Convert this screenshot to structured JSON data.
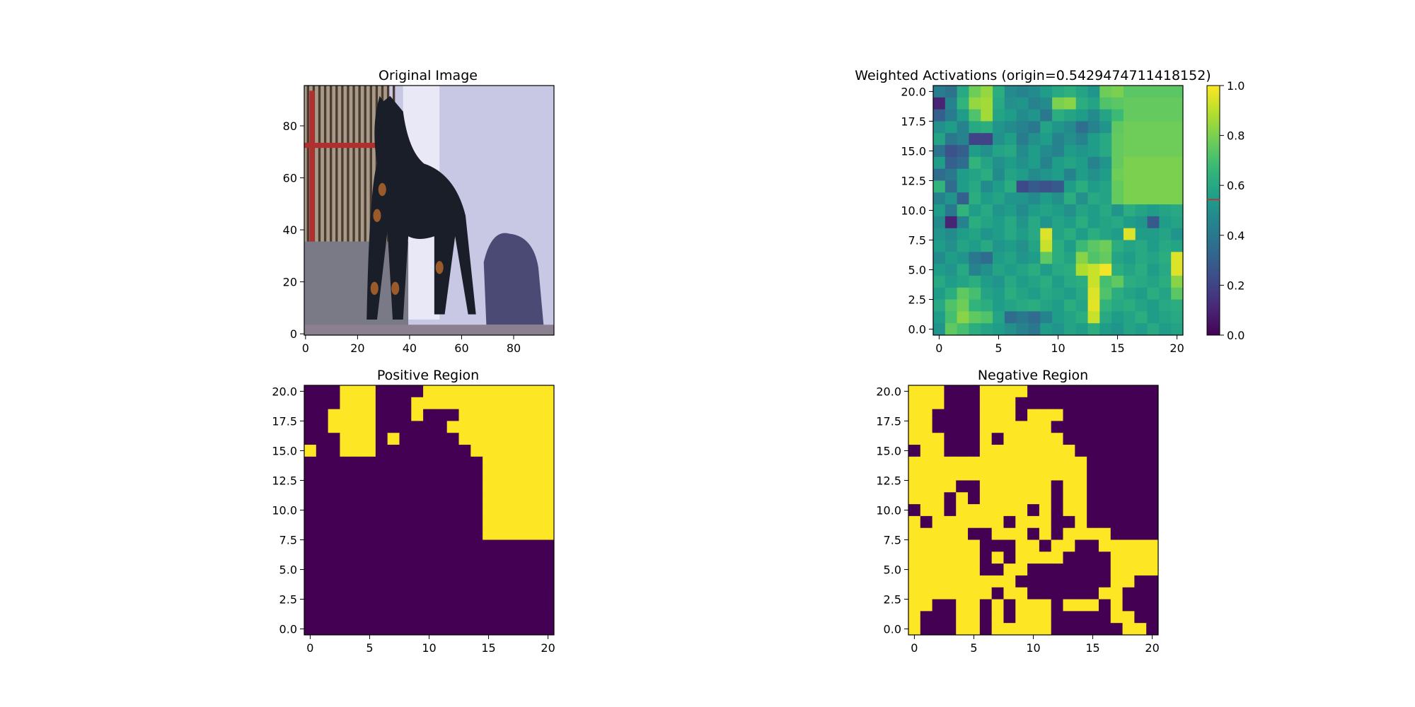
{
  "figure": {
    "background": "#ffffff",
    "panels": [
      {
        "key": "original",
        "title": "Original Image"
      },
      {
        "key": "weighted",
        "title": "Weighted Activations (origin=0.5429474711418152)"
      },
      {
        "key": "positive",
        "title": "Positive Region"
      },
      {
        "key": "negative",
        "title": "Negative Region"
      }
    ]
  },
  "chart_data": [
    {
      "type": "heatmap",
      "title": "Original Image",
      "content": "photograph of a dog",
      "xlim": [
        -0.5,
        95.5
      ],
      "ylim": [
        95.5,
        -0.5
      ],
      "xticks": [
        0,
        20,
        40,
        60,
        80
      ],
      "yticks": [
        0,
        20,
        40,
        60,
        80
      ],
      "palette": {
        "background": "#c8c8e4",
        "fence": "#a89a88",
        "fence_dark": "#4a3a30",
        "red_rail": "#b03030",
        "ground": "#7a7a86",
        "dog": "#1a1e28",
        "tan": "#9a5a2a",
        "shadow": "#4a4a74",
        "highlight": "#e8e8f6"
      }
    },
    {
      "type": "heatmap",
      "title": "Weighted Activations (origin=0.5429474711418152)",
      "rows": 21,
      "cols": 21,
      "xlim": [
        -0.5,
        20.5
      ],
      "ylim": [
        20.5,
        -0.5
      ],
      "xticks": [
        0,
        5,
        10,
        15,
        20
      ],
      "yticks": [
        0.0,
        2.5,
        5.0,
        7.5,
        10.0,
        12.5,
        15.0,
        17.5,
        20.0
      ],
      "colormap": "viridis",
      "colorbar": {
        "range": [
          0.0,
          1.0
        ],
        "ticks": [
          0.0,
          0.2,
          0.4,
          0.6,
          0.8,
          1.0
        ],
        "marker": 0.5429474711418152,
        "marker_color": "#d62728"
      },
      "values": [
        [
          0.42,
          0.38,
          0.6,
          0.78,
          0.84,
          0.62,
          0.48,
          0.45,
          0.48,
          0.55,
          0.6,
          0.63,
          0.58,
          0.52,
          0.78,
          0.8,
          0.74,
          0.74,
          0.74,
          0.74,
          0.74
        ],
        [
          0.1,
          0.45,
          0.65,
          0.84,
          0.86,
          0.6,
          0.5,
          0.52,
          0.45,
          0.48,
          0.8,
          0.82,
          0.62,
          0.58,
          0.72,
          0.74,
          0.76,
          0.76,
          0.76,
          0.76,
          0.76
        ],
        [
          0.3,
          0.42,
          0.55,
          0.72,
          0.86,
          0.58,
          0.55,
          0.48,
          0.52,
          0.4,
          0.62,
          0.58,
          0.55,
          0.48,
          0.58,
          0.68,
          0.76,
          0.76,
          0.76,
          0.76,
          0.76
        ],
        [
          0.5,
          0.55,
          0.45,
          0.6,
          0.62,
          0.52,
          0.48,
          0.45,
          0.4,
          0.58,
          0.52,
          0.48,
          0.36,
          0.45,
          0.52,
          0.75,
          0.78,
          0.78,
          0.78,
          0.78,
          0.78
        ],
        [
          0.58,
          0.4,
          0.45,
          0.2,
          0.2,
          0.5,
          0.56,
          0.42,
          0.5,
          0.55,
          0.45,
          0.5,
          0.45,
          0.55,
          0.6,
          0.76,
          0.78,
          0.78,
          0.78,
          0.78,
          0.78
        ],
        [
          0.38,
          0.25,
          0.3,
          0.55,
          0.5,
          0.58,
          0.6,
          0.48,
          0.55,
          0.48,
          0.45,
          0.55,
          0.52,
          0.55,
          0.6,
          0.76,
          0.78,
          0.78,
          0.78,
          0.78,
          0.78
        ],
        [
          0.55,
          0.3,
          0.35,
          0.65,
          0.58,
          0.5,
          0.55,
          0.5,
          0.55,
          0.45,
          0.55,
          0.58,
          0.55,
          0.45,
          0.52,
          0.76,
          0.8,
          0.8,
          0.8,
          0.8,
          0.8
        ],
        [
          0.35,
          0.4,
          0.55,
          0.58,
          0.62,
          0.48,
          0.58,
          0.55,
          0.48,
          0.52,
          0.55,
          0.45,
          0.55,
          0.5,
          0.55,
          0.78,
          0.8,
          0.8,
          0.8,
          0.8,
          0.8
        ],
        [
          0.65,
          0.35,
          0.55,
          0.6,
          0.48,
          0.55,
          0.62,
          0.22,
          0.28,
          0.25,
          0.28,
          0.55,
          0.62,
          0.55,
          0.58,
          0.76,
          0.8,
          0.8,
          0.8,
          0.8,
          0.8
        ],
        [
          0.45,
          0.52,
          0.3,
          0.62,
          0.55,
          0.58,
          0.52,
          0.52,
          0.48,
          0.55,
          0.5,
          0.62,
          0.5,
          0.6,
          0.58,
          0.76,
          0.8,
          0.8,
          0.8,
          0.8,
          0.8
        ],
        [
          0.55,
          0.4,
          0.65,
          0.55,
          0.6,
          0.52,
          0.55,
          0.48,
          0.55,
          0.58,
          0.55,
          0.5,
          0.58,
          0.55,
          0.6,
          0.52,
          0.62,
          0.58,
          0.55,
          0.58,
          0.6
        ],
        [
          0.48,
          0.1,
          0.45,
          0.62,
          0.58,
          0.55,
          0.6,
          0.52,
          0.6,
          0.52,
          0.58,
          0.55,
          0.62,
          0.55,
          0.58,
          0.6,
          0.55,
          0.52,
          0.28,
          0.55,
          0.58
        ],
        [
          0.52,
          0.48,
          0.55,
          0.58,
          0.52,
          0.55,
          0.6,
          0.55,
          0.6,
          0.95,
          0.58,
          0.62,
          0.55,
          0.62,
          0.58,
          0.55,
          0.95,
          0.55,
          0.55,
          0.58,
          0.52
        ],
        [
          0.55,
          0.5,
          0.58,
          0.55,
          0.6,
          0.52,
          0.55,
          0.5,
          0.58,
          0.92,
          0.62,
          0.55,
          0.68,
          0.74,
          0.78,
          0.62,
          0.58,
          0.6,
          0.55,
          0.6,
          0.58
        ],
        [
          0.48,
          0.55,
          0.52,
          0.4,
          0.35,
          0.55,
          0.58,
          0.52,
          0.55,
          0.75,
          0.62,
          0.58,
          0.82,
          0.72,
          0.76,
          0.58,
          0.55,
          0.6,
          0.58,
          0.62,
          0.95
        ],
        [
          0.55,
          0.52,
          0.6,
          0.45,
          0.5,
          0.58,
          0.55,
          0.58,
          0.62,
          0.55,
          0.6,
          0.62,
          0.88,
          0.92,
          0.98,
          0.62,
          0.58,
          0.62,
          0.55,
          0.6,
          0.95
        ],
        [
          0.6,
          0.55,
          0.58,
          0.62,
          0.55,
          0.52,
          0.6,
          0.55,
          0.58,
          0.62,
          0.55,
          0.6,
          0.62,
          0.92,
          0.7,
          0.75,
          0.62,
          0.6,
          0.58,
          0.62,
          0.82
        ],
        [
          0.55,
          0.62,
          0.75,
          0.7,
          0.58,
          0.55,
          0.62,
          0.58,
          0.55,
          0.6,
          0.58,
          0.55,
          0.6,
          0.95,
          0.72,
          0.62,
          0.58,
          0.55,
          0.62,
          0.58,
          0.74
        ],
        [
          0.6,
          0.72,
          0.78,
          0.65,
          0.62,
          0.55,
          0.58,
          0.6,
          0.62,
          0.58,
          0.55,
          0.62,
          0.58,
          0.96,
          0.65,
          0.6,
          0.62,
          0.58,
          0.55,
          0.6,
          0.62
        ],
        [
          0.55,
          0.7,
          0.82,
          0.75,
          0.72,
          0.58,
          0.35,
          0.4,
          0.35,
          0.45,
          0.55,
          0.58,
          0.62,
          0.92,
          0.6,
          0.55,
          0.58,
          0.62,
          0.55,
          0.58,
          0.6
        ],
        [
          0.52,
          0.75,
          0.7,
          0.62,
          0.58,
          0.55,
          0.5,
          0.45,
          0.4,
          0.55,
          0.52,
          0.58,
          0.55,
          0.62,
          0.55,
          0.52,
          0.58,
          0.55,
          0.6,
          0.55,
          0.58
        ]
      ]
    },
    {
      "type": "heatmap",
      "title": "Positive Region",
      "rows": 21,
      "cols": 21,
      "xlim": [
        -0.5,
        20.5
      ],
      "ylim": [
        20.5,
        -0.5
      ],
      "xticks": [
        0,
        5,
        10,
        15,
        20
      ],
      "yticks": [
        0.0,
        2.5,
        5.0,
        7.5,
        10.0,
        12.5,
        15.0,
        17.5,
        20.0
      ],
      "colors": {
        "0": "#440154",
        "1": "#fde725"
      },
      "values": [
        "000111000011111111111",
        "000111000111111111111",
        "001111000100011111111",
        "001111000000111111111",
        "000111010000011111111",
        "100111000000001111111",
        "000000000000000111111",
        "000000000000000111111",
        "000000000000000111111",
        "000000000000000111111",
        "000000000000000111111",
        "000000000000000111111",
        "000000000000000111111",
        "000000000000000000000",
        "000000000000000000000",
        "000000000000000000000",
        "000000000000000000000",
        "000000000000000000000",
        "000000000000000000000",
        "000000000000000000000",
        "000000000000000000000"
      ]
    },
    {
      "type": "heatmap",
      "title": "Negative Region",
      "rows": 21,
      "cols": 21,
      "xlim": [
        -0.5,
        20.5
      ],
      "ylim": [
        20.5,
        -0.5
      ],
      "xticks": [
        0,
        5,
        10,
        15,
        20
      ],
      "yticks": [
        0.0,
        2.5,
        5.0,
        7.5,
        10.0,
        12.5,
        15.0,
        17.5,
        20.0
      ],
      "colors": {
        "0": "#440154",
        "1": "#fde725"
      },
      "values": [
        "111000111100000000000",
        "111000111000000000000",
        "110000111011100000000",
        "110000111111000000000",
        "111000101111100000000",
        "011000111111110000000",
        "111111111111111000000",
        "111111111111111000000",
        "111100111111011000000",
        "111010111111011000000",
        "011011111101011000000",
        "101111110111001000000",
        "111110011101011110000",
        "111111000110110011111",
        "111111010111100001111",
        "111111001100000001111",
        "111111111000000001100",
        "111111101100000011000",
        "110011010111011101000",
        "100011010111000001100",
        "100011011111000000110"
      ]
    }
  ]
}
